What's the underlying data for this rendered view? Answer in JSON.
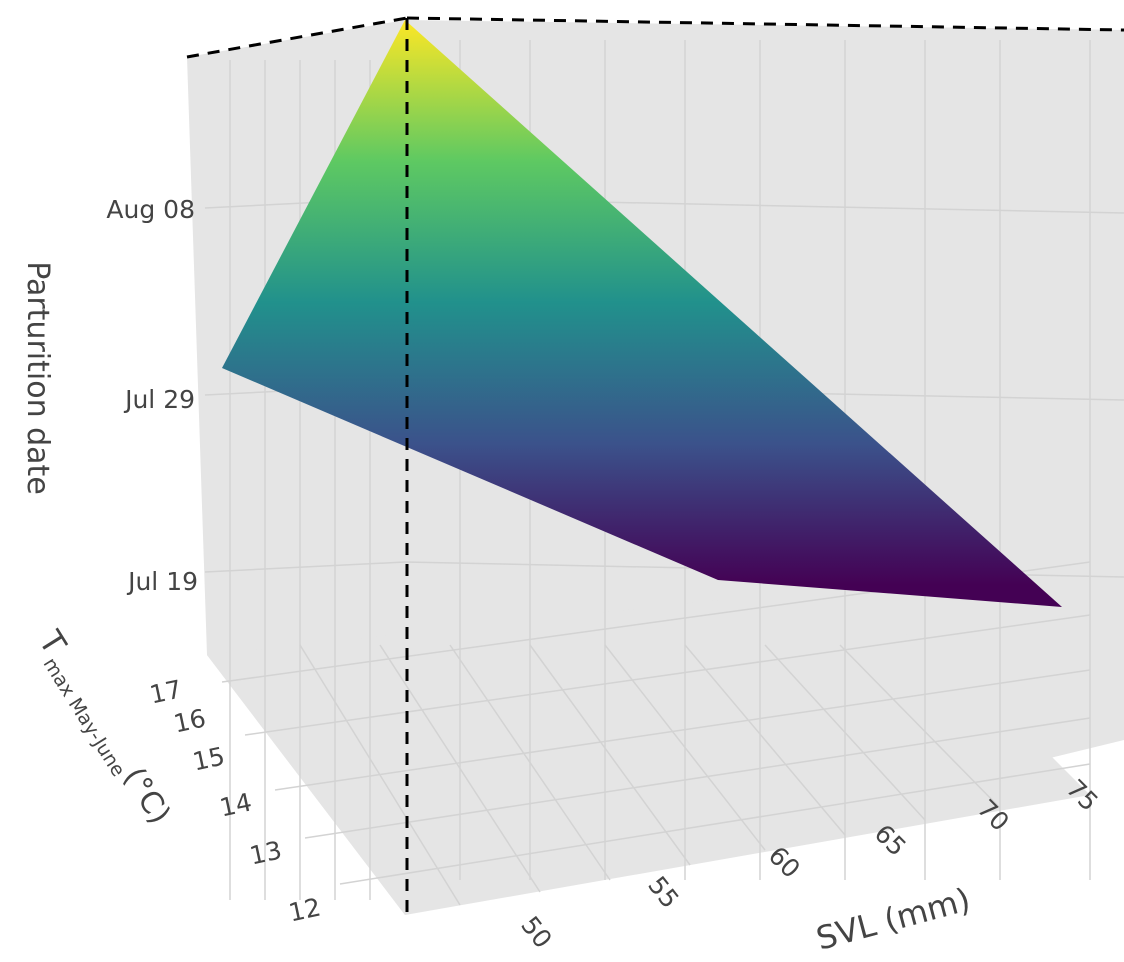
{
  "colors": {
    "pane": "#e5e5e5",
    "grid": "#d3d3d3",
    "tick_text": "#444444",
    "marker_line": "#000000",
    "colorscale": [
      "#440154",
      "#3b528b",
      "#21918c",
      "#5ec962",
      "#fde725"
    ]
  },
  "chart_data": {
    "type": "surface",
    "title": "",
    "zlabel": "Parturition date",
    "ylabel_main": "T",
    "ylabel_sub": "max May-June",
    "ylabel_unit": "(°C)",
    "xlabel": "SVL (mm)",
    "x_ticks": [
      "50",
      "55",
      "60",
      "65",
      "70",
      "75"
    ],
    "y_ticks": [
      "12",
      "13",
      "14",
      "15",
      "16",
      "17"
    ],
    "z_ticks": [
      "Jul 19",
      "Jul 29",
      "Aug 08"
    ],
    "grid": true,
    "surface_corners": [
      {
        "svl_mm": 50,
        "tmax_c": 17,
        "date": "Aug 17"
      },
      {
        "svl_mm": 50,
        "tmax_c": 12,
        "date": "Jul 30"
      },
      {
        "svl_mm": 75,
        "tmax_c": 12,
        "date": "Jul 17"
      },
      {
        "svl_mm": 75,
        "tmax_c": 17,
        "date": "Jul 18"
      }
    ],
    "marker_line": {
      "svl_mm": 50,
      "tmax_c": 12,
      "style": "dashed",
      "orientation": "vertical"
    }
  }
}
